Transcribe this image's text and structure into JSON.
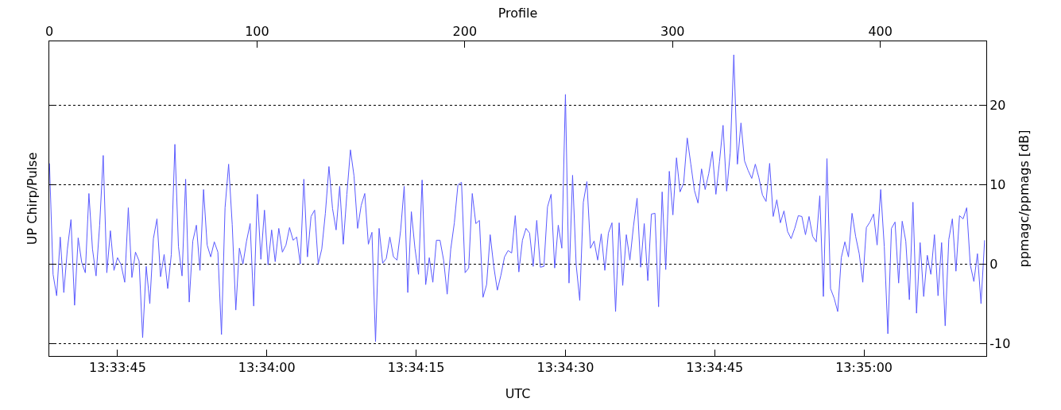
{
  "chart_data": {
    "type": "line",
    "xlabel": "UTC",
    "x2label": "Profile",
    "ylabel": "UP Chirp/Pulse",
    "y2label": "ppmagc/ppmags [dB]",
    "x": [
      13.5606,
      13.5607,
      13.5608,
      13.5609,
      13.561,
      13.5611,
      13.5612,
      13.5613,
      13.5614,
      13.5615,
      13.5616,
      13.5617,
      13.5618,
      13.5619,
      13.562,
      13.5621,
      13.5622,
      13.5623,
      13.5624,
      13.5625,
      13.5626,
      13.5627,
      13.5628,
      13.5629,
      13.563,
      13.5631,
      13.5632,
      13.5633,
      13.5634,
      13.5635,
      13.5636,
      13.5637,
      13.5638,
      13.5639,
      13.564,
      13.5641,
      13.5642,
      13.5643,
      13.5644,
      13.5645,
      13.5646,
      13.5647,
      13.5648,
      13.5649,
      13.565,
      13.5651,
      13.5652,
      13.5653,
      13.5654,
      13.5655,
      13.5656,
      13.5657,
      13.5658,
      13.5659,
      13.566,
      13.5661,
      13.5662,
      13.5663,
      13.5664,
      13.5665,
      13.5666,
      13.5667,
      13.5668,
      13.5669,
      13.567,
      13.5671,
      13.5672,
      13.5673,
      13.5674,
      13.5675,
      13.5676,
      13.5677,
      13.5678,
      13.5679,
      13.568,
      13.5681,
      13.5682,
      13.5683,
      13.5684,
      13.5685,
      13.5686,
      13.5687,
      13.5688,
      13.5689,
      13.569,
      13.5691,
      13.5692,
      13.5693,
      13.5694,
      13.5695,
      13.5696,
      13.5697,
      13.5698,
      13.5699,
      13.57,
      13.5701,
      13.5702,
      13.5703,
      13.5704,
      13.5705,
      13.5706,
      13.5707,
      13.5708,
      13.5709,
      13.571,
      13.5711,
      13.5712,
      13.5713,
      13.5714,
      13.5715,
      13.5716,
      13.5717,
      13.5718,
      13.5719,
      13.572,
      13.5721,
      13.5722,
      13.5723,
      13.5724,
      13.5725,
      13.5726,
      13.5727,
      13.5728,
      13.5729,
      13.573,
      13.5731,
      13.5732,
      13.5733,
      13.5734,
      13.5735,
      13.5736,
      13.5737,
      13.5738,
      13.5739,
      13.574,
      13.5741,
      13.5742,
      13.5743,
      13.5744,
      13.5745,
      13.5746,
      13.5747,
      13.5748,
      13.5749,
      13.575,
      13.5751,
      13.5752,
      13.5753,
      13.5754,
      13.5755,
      13.5756,
      13.5757,
      13.5758,
      13.5759,
      13.576,
      13.5761,
      13.5762,
      13.5763,
      13.5764,
      13.5765,
      13.5766,
      13.5767,
      13.5768,
      13.5769,
      13.577,
      13.5771,
      13.5772,
      13.5773,
      13.5774,
      13.5775,
      13.5776,
      13.5777,
      13.5778,
      13.5779,
      13.578,
      13.5781,
      13.5782,
      13.5783,
      13.5784,
      13.5785,
      13.5786,
      13.5787,
      13.5788,
      13.5789,
      13.579,
      13.5791,
      13.5792,
      13.5793,
      13.5794,
      13.5795,
      13.5796,
      13.5797,
      13.5798,
      13.5799,
      13.58,
      13.5801,
      13.5802,
      13.5803,
      13.5804,
      13.5805,
      13.5806,
      13.5807,
      13.5808,
      13.5809,
      13.581,
      13.5811,
      13.5812,
      13.5813,
      13.5814,
      13.5815,
      13.5816,
      13.5817,
      13.5818,
      13.5819,
      13.582,
      13.5821,
      13.5822,
      13.5823,
      13.5824,
      13.5825,
      13.5826,
      13.5827,
      13.5828,
      13.5829,
      13.583,
      13.5831,
      13.5832,
      13.5833,
      13.5834,
      13.5835,
      13.5836,
      13.5837,
      13.5838,
      13.5839,
      13.584,
      13.5841,
      13.5842,
      13.5843,
      13.5844,
      13.5845,
      13.5846,
      13.5847,
      13.5848,
      13.5849,
      13.585,
      13.5851,
      13.5852,
      13.5853,
      13.5854,
      13.5855,
      13.5856,
      13.5857,
      13.5858,
      13.5859,
      13.586,
      13.5861,
      13.5862,
      13.5863,
      13.5864,
      13.5865,
      13.5866,
      13.5867
    ],
    "series": [
      {
        "color": "#5a5aff",
        "axis": "y2",
        "values": [
          12.7,
          -1.3,
          -4.0,
          3.4,
          -3.6,
          1.9,
          5.6,
          -5.2,
          3.3,
          0.2,
          -1.1,
          8.9,
          1.9,
          -1.5,
          4.9,
          13.7,
          -1.1,
          4.2,
          -0.8,
          0.8,
          -0.1,
          -2.3,
          7.1,
          -1.7,
          1.5,
          0.4,
          -9.3,
          -0.3,
          -5.0,
          3.2,
          5.7,
          -1.6,
          1.2,
          -3.1,
          1.2,
          15.1,
          2.2,
          -1.5,
          10.7,
          -4.8,
          2.9,
          4.9,
          -0.8,
          9.4,
          2.4,
          0.9,
          2.8,
          1.5,
          -8.9,
          7.1,
          12.6,
          5.0,
          -5.8,
          2.0,
          0,
          2.9,
          5.1,
          -5.3,
          8.8,
          0.6,
          6.8,
          -0.1,
          4.3,
          0.3,
          4.5,
          1.5,
          2.4,
          4.6,
          3.0,
          3.4,
          0,
          10.7,
          0.9,
          6.0,
          6.8,
          0,
          1.9,
          6.4,
          12.3,
          7.0,
          4.3,
          9.8,
          2.5,
          8.8,
          14.4,
          11.1,
          4.5,
          7.4,
          8.9,
          2.5,
          4.0,
          -9.8,
          4.5,
          0.1,
          0.7,
          3.4,
          0.9,
          0.5,
          4.2,
          9.8,
          -3.6,
          6.6,
          2.0,
          -1.3,
          10.6,
          -2.6,
          0.8,
          -2.3,
          3.0,
          3.0,
          0.5,
          -3.8,
          1.9,
          5.2,
          10.0,
          10.3,
          -1.1,
          -0.5,
          8.9,
          5.1,
          5.5,
          -4.2,
          -2.6,
          3.7,
          -0.3,
          -3.3,
          -1.4,
          0.9,
          1.7,
          1.4,
          6.1,
          -1.0,
          3.0,
          4.5,
          3.9,
          -0.3,
          5.5,
          -0.4,
          -0.3,
          7.2,
          8.8,
          -0.5,
          4.9,
          2.0,
          21.4,
          -2.4,
          11.2,
          -0.1,
          -4.6,
          7.8,
          10.4,
          2.0,
          2.9,
          0.5,
          3.8,
          -0.8,
          3.9,
          5.2,
          -6.0,
          5.2,
          -2.7,
          3.7,
          0.5,
          4.8,
          8.3,
          -0.4,
          5.1,
          -2.1,
          6.3,
          6.4,
          -5.4,
          9.1,
          -0.7,
          11.7,
          6.2,
          13.4,
          9.1,
          10.2,
          15.9,
          12.6,
          9.3,
          7.7,
          12.0,
          9.4,
          11.4,
          14.2,
          8.8,
          12.9,
          17.5,
          9.2,
          14.0,
          26.4,
          12.6,
          17.8,
          13.0,
          11.8,
          10.8,
          12.6,
          10.9,
          8.7,
          7.9,
          12.7,
          6.0,
          8.1,
          5.2,
          6.7,
          4.1,
          3.2,
          4.5,
          6.1,
          6.0,
          3.7,
          6.0,
          3.5,
          2.8,
          8.6,
          -4.1,
          13.3,
          -3.1,
          -4.3,
          -6.0,
          0.8,
          2.8,
          0.9,
          6.4,
          3.5,
          1.3,
          -2.3,
          4.6,
          5.3,
          6.3,
          2.4,
          9.4,
          2.2,
          -8.8,
          4.5,
          5.3,
          -2.4,
          5.4,
          2.9,
          -4.5,
          7.8,
          -6.2,
          2.7,
          -4.1,
          1.1,
          -1.3,
          3.7,
          -4.0,
          2.7,
          -7.8,
          3.1,
          5.7,
          -0.9,
          6.1,
          5.7,
          7.1,
          -0.1,
          -2.2,
          1.3,
          -5.0,
          3.0
        ]
      }
    ],
    "xlim": [
      13.560594,
      13.586747
    ],
    "xticks": [
      {
        "value": 13.5625,
        "label": "13:33:45"
      },
      {
        "value": 13.566667,
        "label": "13:34:00"
      },
      {
        "value": 13.570833,
        "label": "13:34:15"
      },
      {
        "value": 13.575,
        "label": "13:34:30"
      },
      {
        "value": 13.579167,
        "label": "13:34:45"
      },
      {
        "value": 13.583333,
        "label": "13:35:00"
      }
    ],
    "x2lim": [
      0,
      451
    ],
    "x2ticks": [
      0,
      100,
      200,
      300,
      400
    ],
    "y2lim": [
      -11.6,
      28.1
    ],
    "y2ticks": [
      -10,
      0,
      10,
      20
    ],
    "grid": "y",
    "line_style": "solid"
  }
}
